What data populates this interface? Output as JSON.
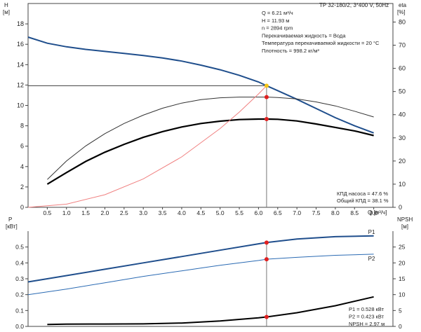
{
  "chart_data": [
    {
      "type": "line",
      "title": "TP 32-180/2, 3*400 V, 50Hz",
      "left_axis": {
        "label": "H",
        "unit": "[м]",
        "ylim": [
          0,
          20
        ],
        "ticks": [
          0,
          2,
          4,
          6,
          8,
          10,
          12,
          14,
          16,
          18
        ]
      },
      "right_axis": {
        "label": "eta",
        "unit": "[%]",
        "ylim": [
          0,
          88
        ],
        "ticks": [
          0,
          10,
          20,
          30,
          40,
          50,
          60,
          70,
          80
        ]
      },
      "x_axis": {
        "label": "Q",
        "unit": "[м³/ч]",
        "xlim": [
          0,
          9.5
        ],
        "ticks": [
          "0.5",
          "1.0",
          "1.5",
          "2.0",
          "2.5",
          "3.0",
          "3.5",
          "4.0",
          "4.5",
          "5.0",
          "5.5",
          "6.0",
          "6.5",
          "7.0",
          "7.5",
          "8.0",
          "8.5",
          "9.0"
        ]
      },
      "info_lines": [
        "Q = 6.21 м³/ч",
        "H = 11.93 м",
        "n = 2894 rpm",
        "Перекачиваемая жидкость = Вода",
        "Температура перекачиваемой жидкости = 20 °C",
        "Плотность = 998.2 кг/м³"
      ],
      "efficiency_lines": [
        "КПД насоса = 47.6 %",
        "Общий КПД = 38.1 %"
      ],
      "duty_point": {
        "q": 6.21,
        "h": 11.93
      },
      "series": [
        {
          "axis": "left",
          "color": "#1f4e8c",
          "width": 2,
          "points": [
            [
              0,
              16.7
            ],
            [
              0.5,
              16.1
            ],
            [
              1,
              15.75
            ],
            [
              1.5,
              15.5
            ],
            [
              2,
              15.3
            ],
            [
              2.5,
              15.1
            ],
            [
              3,
              14.9
            ],
            [
              3.5,
              14.65
            ],
            [
              4,
              14.35
            ],
            [
              4.5,
              13.95
            ],
            [
              5,
              13.5
            ],
            [
              5.5,
              12.95
            ],
            [
              6,
              12.3
            ],
            [
              6.21,
              11.93
            ],
            [
              6.5,
              11.45
            ],
            [
              7,
              10.6
            ],
            [
              7.5,
              9.7
            ],
            [
              8,
              8.8
            ],
            [
              8.5,
              8.0
            ],
            [
              9,
              7.3
            ]
          ]
        },
        {
          "axis": "right",
          "color": "#333333",
          "width": 1,
          "points": [
            [
              0.5,
              12
            ],
            [
              1,
              20
            ],
            [
              1.5,
              26.5
            ],
            [
              2,
              31.8
            ],
            [
              2.5,
              36.2
            ],
            [
              3,
              39.8
            ],
            [
              3.5,
              42.8
            ],
            [
              4,
              45
            ],
            [
              4.5,
              46.5
            ],
            [
              5,
              47.3
            ],
            [
              5.5,
              47.6
            ],
            [
              6,
              47.6
            ],
            [
              6.21,
              47.6
            ],
            [
              6.5,
              47.4
            ],
            [
              7,
              46.8
            ],
            [
              7.5,
              45.5
            ],
            [
              8,
              43.8
            ],
            [
              8.5,
              41.5
            ],
            [
              9,
              39
            ]
          ]
        },
        {
          "axis": "right",
          "color": "#000000",
          "width": 2.2,
          "points": [
            [
              0.5,
              10
            ],
            [
              1,
              15
            ],
            [
              1.5,
              19.8
            ],
            [
              2,
              23.8
            ],
            [
              2.5,
              27.2
            ],
            [
              3,
              30.2
            ],
            [
              3.5,
              32.7
            ],
            [
              4,
              34.7
            ],
            [
              4.5,
              36.2
            ],
            [
              5,
              37.2
            ],
            [
              5.5,
              37.9
            ],
            [
              6,
              38.1
            ],
            [
              6.21,
              38.1
            ],
            [
              6.5,
              38
            ],
            [
              7,
              37.3
            ],
            [
              7.5,
              36
            ],
            [
              8,
              34.5
            ],
            [
              8.5,
              33
            ],
            [
              9,
              31
            ]
          ]
        },
        {
          "axis": "left",
          "color": "#f08080",
          "width": 1,
          "points": [
            [
              0,
              0
            ],
            [
              1,
              0.31
            ],
            [
              2,
              1.24
            ],
            [
              3,
              2.79
            ],
            [
              4,
              4.95
            ],
            [
              5,
              7.73
            ],
            [
              5.5,
              9.35
            ],
            [
              6,
              11.13
            ],
            [
              6.21,
              11.93
            ]
          ]
        }
      ],
      "markers": [
        {
          "axis": "left",
          "x": 6.21,
          "y": 11.93,
          "color": "#f5c518"
        },
        {
          "axis": "right",
          "x": 6.21,
          "y": 47.6,
          "color": "#e02020"
        },
        {
          "axis": "right",
          "x": 6.21,
          "y": 38.1,
          "color": "#e02020"
        }
      ]
    },
    {
      "type": "line",
      "left_axis": {
        "label": "P",
        "unit": "[кВт]",
        "ylim": [
          0,
          0.6
        ],
        "ticks": [
          "0.0",
          "0.1",
          "0.2",
          "0.3",
          "0.4",
          "0.5"
        ]
      },
      "right_axis": {
        "label": "NPSH",
        "unit": "[м]",
        "ylim": [
          0,
          30
        ],
        "ticks": [
          0,
          5,
          10,
          15,
          20,
          25
        ]
      },
      "xlim": [
        0,
        9.5
      ],
      "info_lines": [
        "P1 = 0.528 кВт",
        "P2 = 0.423 кВт",
        "NPSH = 2.97 м"
      ],
      "series": [
        {
          "name": "P1",
          "axis": "left",
          "color": "#1f4e8c",
          "width": 2,
          "points": [
            [
              0,
              0.28
            ],
            [
              0.5,
              0.3
            ],
            [
              1,
              0.32
            ],
            [
              2,
              0.36
            ],
            [
              3,
              0.4
            ],
            [
              4,
              0.44
            ],
            [
              5,
              0.48
            ],
            [
              6,
              0.52
            ],
            [
              6.21,
              0.528
            ],
            [
              7,
              0.55
            ],
            [
              8,
              0.565
            ],
            [
              9,
              0.57
            ]
          ]
        },
        {
          "name": "P2",
          "axis": "left",
          "color": "#2a6ab3",
          "width": 1,
          "points": [
            [
              0,
              0.2
            ],
            [
              1,
              0.235
            ],
            [
              2,
              0.275
            ],
            [
              3,
              0.315
            ],
            [
              4,
              0.35
            ],
            [
              5,
              0.385
            ],
            [
              6,
              0.415
            ],
            [
              6.21,
              0.423
            ],
            [
              7,
              0.435
            ],
            [
              8,
              0.448
            ],
            [
              9,
              0.455
            ]
          ]
        },
        {
          "axis": "right",
          "color": "#000000",
          "width": 2,
          "points": [
            [
              0.5,
              0.6
            ],
            [
              1,
              0.7
            ],
            [
              2,
              0.75
            ],
            [
              3,
              0.8
            ],
            [
              4,
              1.05
            ],
            [
              5,
              1.7
            ],
            [
              6,
              2.7
            ],
            [
              6.21,
              2.97
            ],
            [
              7,
              4.3
            ],
            [
              8,
              6.5
            ],
            [
              9,
              9.3
            ]
          ]
        }
      ],
      "markers": [
        {
          "axis": "left",
          "x": 6.21,
          "y": 0.528,
          "color": "#e02020"
        },
        {
          "axis": "left",
          "x": 6.21,
          "y": 0.423,
          "color": "#e02020"
        },
        {
          "axis": "right",
          "x": 6.21,
          "y": 2.97,
          "color": "#e02020"
        }
      ]
    }
  ]
}
